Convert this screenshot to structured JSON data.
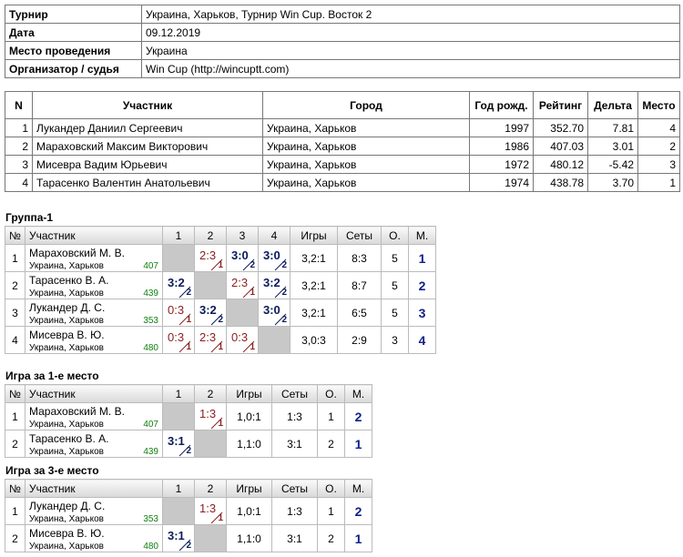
{
  "info": {
    "rows": [
      [
        "Турнир",
        "Украина, Харьков, Турнир Win Cup. Восток 2"
      ],
      [
        "Дата",
        "09.12.2019"
      ],
      [
        "Место проведения",
        "Украина"
      ],
      [
        "Организатор / судья",
        "Win Cup (http://wincuptt.com)"
      ]
    ]
  },
  "participants": {
    "headers": [
      "N",
      "Участник",
      "Город",
      "Год рожд.",
      "Рейтинг",
      "Дельта",
      "Место"
    ],
    "rows": [
      [
        "1",
        "Лукандер Даниил Сергеевич",
        "Украина, Харьков",
        "1997",
        "352.70",
        "7.81",
        "4"
      ],
      [
        "2",
        "Мараховский Максим Викторович",
        "Украина, Харьков",
        "1986",
        "407.03",
        "3.01",
        "2"
      ],
      [
        "3",
        "Мисевра Вадим Юрьевич",
        "Украина, Харьков",
        "1972",
        "480.12",
        "-5.42",
        "3"
      ],
      [
        "4",
        "Тарасенко Валентин Анатольевич",
        "Украина, Харьков",
        "1974",
        "438.78",
        "3.70",
        "1"
      ]
    ]
  },
  "groups": [
    {
      "title": "Группа-1",
      "headers": [
        "№",
        "Участник",
        "1",
        "2",
        "3",
        "4",
        "Игры",
        "Сеты",
        "О.",
        "М."
      ],
      "rows": [
        {
          "n": "1",
          "name": "Мараховский М. В.",
          "city": "Украина, Харьков",
          "rating": "407",
          "cells": [
            null,
            {
              "score": "2:3",
              "sub": "1",
              "win": false
            },
            {
              "score": "3:0",
              "sub": "2",
              "win": true
            },
            {
              "score": "3:0",
              "sub": "2",
              "win": true
            }
          ],
          "games": "3,2:1",
          "sets": "8:3",
          "points": "5",
          "place": "1"
        },
        {
          "n": "2",
          "name": "Тарасенко В. А.",
          "city": "Украина, Харьков",
          "rating": "439",
          "cells": [
            {
              "score": "3:2",
              "sub": "2",
              "win": true
            },
            null,
            {
              "score": "2:3",
              "sub": "1",
              "win": false
            },
            {
              "score": "3:2",
              "sub": "2",
              "win": true
            }
          ],
          "games": "3,2:1",
          "sets": "8:7",
          "points": "5",
          "place": "2"
        },
        {
          "n": "3",
          "name": "Лукандер Д. С.",
          "city": "Украина, Харьков",
          "rating": "353",
          "cells": [
            {
              "score": "0:3",
              "sub": "1",
              "win": false
            },
            {
              "score": "3:2",
              "sub": "2",
              "win": true
            },
            null,
            {
              "score": "3:0",
              "sub": "2",
              "win": true
            }
          ],
          "games": "3,2:1",
          "sets": "6:5",
          "points": "5",
          "place": "3"
        },
        {
          "n": "4",
          "name": "Мисевра В. Ю.",
          "city": "Украина, Харьков",
          "rating": "480",
          "cells": [
            {
              "score": "0:3",
              "sub": "1",
              "win": false
            },
            {
              "score": "2:3",
              "sub": "1",
              "win": false
            },
            {
              "score": "0:3",
              "sub": "1",
              "win": false
            },
            null
          ],
          "games": "3,0:3",
          "sets": "2:9",
          "points": "3",
          "place": "4"
        }
      ]
    },
    {
      "title": "Игра за 1-е место",
      "headers": [
        "№",
        "Участник",
        "1",
        "2",
        "Игры",
        "Сеты",
        "О.",
        "М."
      ],
      "rows": [
        {
          "n": "1",
          "name": "Мараховский М. В.",
          "city": "Украина, Харьков",
          "rating": "407",
          "cells": [
            null,
            {
              "score": "1:3",
              "sub": "1",
              "win": false
            }
          ],
          "games": "1,0:1",
          "sets": "1:3",
          "points": "1",
          "place": "2"
        },
        {
          "n": "2",
          "name": "Тарасенко В. А.",
          "city": "Украина, Харьков",
          "rating": "439",
          "cells": [
            {
              "score": "3:1",
              "sub": "2",
              "win": true
            },
            null
          ],
          "games": "1,1:0",
          "sets": "3:1",
          "points": "2",
          "place": "1"
        }
      ]
    },
    {
      "title": "Игра за 3-е место",
      "headers": [
        "№",
        "Участник",
        "1",
        "2",
        "Игры",
        "Сеты",
        "О.",
        "М."
      ],
      "rows": [
        {
          "n": "1",
          "name": "Лукандер Д. С.",
          "city": "Украина, Харьков",
          "rating": "353",
          "cells": [
            null,
            {
              "score": "1:3",
              "sub": "1",
              "win": false
            }
          ],
          "games": "1,0:1",
          "sets": "1:3",
          "points": "1",
          "place": "2"
        },
        {
          "n": "2",
          "name": "Мисевра В. Ю.",
          "city": "Украина, Харьков",
          "rating": "480",
          "cells": [
            {
              "score": "3:1",
              "sub": "2",
              "win": true
            },
            null
          ],
          "games": "1,1:0",
          "sets": "3:1",
          "points": "2",
          "place": "1"
        }
      ]
    }
  ]
}
